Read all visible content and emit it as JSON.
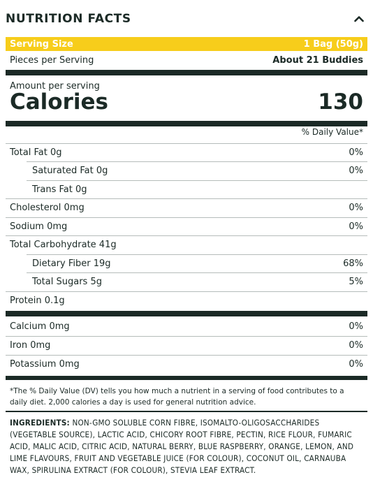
{
  "header": {
    "title": "NUTRITION FACTS",
    "toggle_icon": "chevron-up-icon"
  },
  "serving": {
    "label": "Serving Size",
    "value": "1 Bag (50g)",
    "highlight_color": "#f7cd1b"
  },
  "pieces": {
    "label": "Pieces per Serving",
    "value": "About 21 Buddies"
  },
  "calories": {
    "amount_label": "Amount per serving",
    "label": "Calories",
    "value": "130"
  },
  "dv_header": "% Daily Value*",
  "nutrients_main": [
    {
      "label": "Total Fat 0g",
      "dv": "0%"
    },
    {
      "label": "Saturated Fat 0g",
      "dv": "0%"
    },
    {
      "label": "Trans Fat 0g",
      "dv": ""
    },
    {
      "label": "Cholesterol 0mg",
      "dv": "0%"
    },
    {
      "label": "Sodium 0mg",
      "dv": "0%"
    },
    {
      "label": "Total Carbohydrate 41g",
      "dv": ""
    },
    {
      "label": "Dietary Fiber 19g",
      "dv": "68%"
    },
    {
      "label": "Total Sugars 5g",
      "dv": "5%"
    },
    {
      "label": "Protein 0.1g",
      "dv": ""
    }
  ],
  "nutrients_minerals": [
    {
      "label": "Calcium 0mg",
      "dv": "0%"
    },
    {
      "label": "Iron 0mg",
      "dv": "0%"
    },
    {
      "label": "Potassium 0mg",
      "dv": "0%"
    }
  ],
  "footnote": "*The % Daily Value (DV) tells you how much a nutrient in a serving of food contributes to a daily diet. 2,000 calories a day is used for general nutrition advice.",
  "ingredients": {
    "heading": "INGREDIENTS:",
    "text": "NON-GMO SOLUBLE CORN FIBRE, ISOMALTO-OLIGOSACCHARIDES (VEGETABLE SOURCE), LACTIC ACID, CHICORY ROOT FIBRE, PECTIN, RICE FLOUR, FUMARIC ACID, MALIC ACID, CITRIC ACID, NATURAL BERRY, BLUE RASPBERRY, ORANGE, LEMON, AND LIME FLAVOURS, FRUIT AND VEGETABLE JUICE (FOR COLOUR), COCONUT OIL, CARNAUBA WAX, SPIRULINA EXTRACT (FOR COLOUR), STEVIA LEAF EXTRACT."
  },
  "colors": {
    "text": "#1b2a26",
    "highlight": "#f7cd1b"
  }
}
